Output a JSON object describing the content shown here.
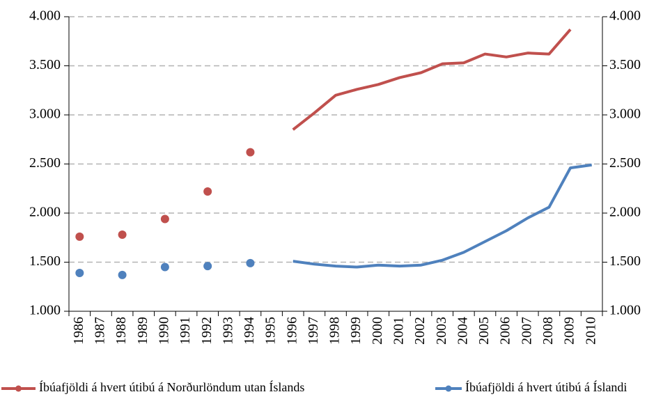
{
  "chart_data": {
    "type": "line",
    "categories": [
      "1986",
      "1987",
      "1988",
      "1989",
      "1990",
      "1991",
      "1992",
      "1993",
      "1994",
      "1995",
      "1996",
      "1997",
      "1998",
      "1999",
      "2000",
      "2001",
      "2002",
      "2003",
      "2004",
      "2005",
      "2006",
      "2007",
      "2008",
      "2009",
      "2010"
    ],
    "series": [
      {
        "name": "Íbúafjöldi á hvert útibú á Norðurlöndum utan Íslands",
        "color": "#c0504d",
        "values": [
          1760,
          null,
          1780,
          null,
          1940,
          null,
          2220,
          null,
          2620,
          null,
          2850,
          3020,
          3200,
          3260,
          3310,
          3380,
          3430,
          3520,
          3530,
          3620,
          3590,
          3630,
          3620,
          3870,
          null
        ]
      },
      {
        "name": "Íbúafjöldi á hvert útibú á Íslandi",
        "color": "#4f81bd",
        "values": [
          1390,
          null,
          1370,
          null,
          1450,
          null,
          1460,
          null,
          1490,
          null,
          1510,
          1480,
          1460,
          1450,
          1470,
          1460,
          1470,
          1520,
          1600,
          1710,
          1820,
          1950,
          2060,
          2460,
          2490
        ]
      }
    ],
    "ylim": [
      1000,
      4000
    ],
    "yticks": [
      {
        "value": 1000,
        "label": "1.000"
      },
      {
        "value": 1500,
        "label": "1.500"
      },
      {
        "value": 2000,
        "label": "2.000"
      },
      {
        "value": 2500,
        "label": "2.500"
      },
      {
        "value": 3000,
        "label": "3.000"
      },
      {
        "value": 3500,
        "label": "3.500"
      },
      {
        "value": 4000,
        "label": "4.000"
      }
    ],
    "y2lim": [
      1000,
      4000
    ],
    "y2ticks": [
      {
        "value": 1000,
        "label": "1.000"
      },
      {
        "value": 1500,
        "label": "1.500"
      },
      {
        "value": 2000,
        "label": "2.000"
      },
      {
        "value": 2500,
        "label": "2.500"
      },
      {
        "value": 3000,
        "label": "3.000"
      },
      {
        "value": 3500,
        "label": "3.500"
      },
      {
        "value": 4000,
        "label": "4.000"
      }
    ],
    "grid": true,
    "legend": "bottom"
  }
}
